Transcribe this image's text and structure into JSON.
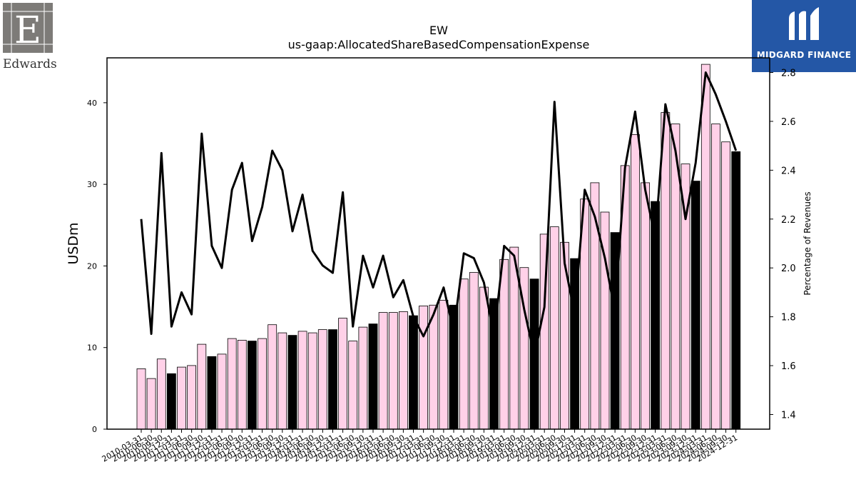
{
  "logos": {
    "left_text": "Edwards",
    "right_text": "MIDGARD FINANCE"
  },
  "chart_data": {
    "type": "bar",
    "title": "EW",
    "subtitle": "us-gaap:AllocatedShareBasedCompensationExpense",
    "ylabel": "USDm",
    "y2label": "Percentage of Revenues",
    "ylim": [
      0,
      45.5
    ],
    "y2lim": [
      1.34,
      2.86
    ],
    "yticks": [
      0,
      10,
      20,
      30,
      40
    ],
    "y2ticks": [
      1.4,
      1.6,
      1.8,
      2.0,
      2.2,
      2.4,
      2.6,
      2.8
    ],
    "categories": [
      "2010-03-31",
      "2010-06-30",
      "2010-09-30",
      "2010-12-31",
      "2011-03-31",
      "2011-06-30",
      "2011-09-30",
      "2011-12-31",
      "2012-03-31",
      "2012-06-30",
      "2012-09-30",
      "2012-12-31",
      "2013-03-31",
      "2013-06-30",
      "2013-09-30",
      "2013-12-31",
      "2014-03-31",
      "2014-06-30",
      "2014-09-30",
      "2014-12-31",
      "2015-03-31",
      "2015-06-30",
      "2015-09-30",
      "2015-12-31",
      "2016-03-31",
      "2016-06-30",
      "2016-09-30",
      "2016-12-31",
      "2017-03-31",
      "2017-06-30",
      "2017-09-30",
      "2017-12-31",
      "2018-03-31",
      "2018-06-30",
      "2018-09-30",
      "2018-12-31",
      "2019-03-31",
      "2019-06-30",
      "2019-09-30",
      "2019-12-31",
      "2020-03-31",
      "2020-06-30",
      "2020-09-30",
      "2020-12-31",
      "2021-03-31",
      "2021-06-30",
      "2021-09-30",
      "2021-12-31",
      "2022-03-31",
      "2022-06-30",
      "2022-09-30",
      "2022-12-31",
      "2023-03-31",
      "2023-06-30",
      "2023-09-30",
      "2023-12-31",
      "2024-03-31",
      "2024-06-30",
      "2024-09-30",
      "2024-12-31"
    ],
    "series": [
      {
        "values": [
          7.4,
          6.2,
          8.6,
          6.8,
          7.6,
          7.8,
          10.4,
          8.9,
          9.2,
          11.1,
          10.9,
          10.8,
          11.1,
          12.8,
          11.8,
          11.5,
          12.0,
          11.8,
          12.2,
          12.2,
          13.6,
          10.8,
          12.5,
          12.9,
          14.3,
          14.3,
          14.4,
          13.9,
          15.1,
          15.2,
          15.8,
          15.2,
          18.4,
          19.2,
          17.4,
          16.0,
          20.8,
          22.3,
          19.8,
          18.4,
          23.9,
          24.8,
          22.9,
          20.9,
          28.2,
          30.2,
          26.6,
          24.1,
          32.3,
          36.1,
          30.2,
          27.9,
          38.8,
          37.4,
          32.5,
          30.4,
          44.7,
          37.4,
          35.2,
          34.0
        ]
      },
      {
        "values": [
          2.2,
          1.73,
          2.47,
          1.76,
          1.9,
          1.81,
          2.55,
          2.09,
          2.0,
          2.32,
          2.43,
          2.11,
          2.25,
          2.48,
          2.4,
          2.15,
          2.3,
          2.07,
          2.01,
          1.98,
          2.31,
          1.76,
          2.05,
          1.92,
          2.05,
          1.88,
          1.95,
          1.8,
          1.72,
          1.81,
          1.92,
          1.74,
          2.06,
          2.04,
          1.94,
          1.72,
          2.09,
          2.05,
          1.83,
          1.64,
          1.84,
          2.68,
          2.02,
          1.81,
          2.32,
          2.21,
          2.04,
          1.82,
          2.41,
          2.64,
          2.32,
          2.12,
          2.67,
          2.48,
          2.2,
          2.43,
          2.8,
          2.71,
          2.6,
          2.48
        ]
      }
    ]
  }
}
